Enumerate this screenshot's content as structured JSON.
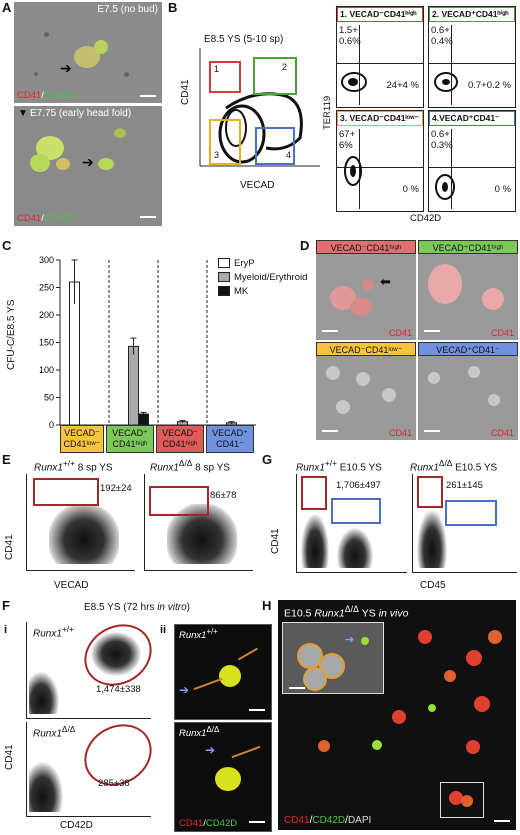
{
  "panels": {
    "A": {
      "label": "A",
      "top_caption": "E7.5 (no bud)",
      "bottom_caption": "E7.75 (early head fold)",
      "stain_red": "CD41",
      "stain_sep": "/",
      "stain_green": "CD42D"
    },
    "B": {
      "label": "B",
      "title": "E8.5 YS (5-10 sp)",
      "xlabel": "VECAD",
      "ylabel": "CD41",
      "gate_labels": [
        "1",
        "2",
        "3",
        "4"
      ],
      "subplots": [
        {
          "title": "1. VECAD⁻CD41ʰⁱᵍʰ",
          "ul": "1.5+\n0.6%",
          "lr": "24+4 %",
          "color": "#d23b3e"
        },
        {
          "title": "2. VECAD⁺CD41ʰⁱᵍʰ",
          "ul": "0.6+\n0.4%",
          "lr": "0.7+0.2 %",
          "color": "#4aa23a"
        },
        {
          "title": "3. VECAD⁻CD41ˡᵒʷ⁻",
          "ul": "67+\n6%",
          "lr": "0 %",
          "color": "#e8b020"
        },
        {
          "title": "4.VECAD⁺CD41⁻",
          "ul": "0.6+\n0.3%",
          "lr": "0 %",
          "color": "#4a70c8"
        }
      ],
      "sub_ylabel": "TER119",
      "sub_xlabel": "CD42D"
    },
    "C": {
      "label": "C",
      "ylabel": "CFU-C/E8.5 YS",
      "legend": [
        "EryP",
        "Myeloid/Erythroid",
        "MK"
      ],
      "categories": [
        {
          "line1": "VECAD⁻",
          "line2": "CD41ˡᵒʷ⁻",
          "color": "#f5c43a"
        },
        {
          "line1": "VECAD⁺",
          "line2": "CD41ʰⁱᵍʰ",
          "color": "#7cc85a"
        },
        {
          "line1": "VECAD⁻",
          "line2": "CD41ʰⁱᵍʰ",
          "color": "#e05a5a"
        },
        {
          "line1": "VECAD⁺",
          "line2": "CD41⁻",
          "color": "#7090e0"
        }
      ],
      "ytick_labels": [
        "0",
        "50",
        "100",
        "150",
        "200",
        "250",
        "300"
      ]
    },
    "D": {
      "label": "D",
      "tiles": [
        {
          "title": "VECAD⁻CD41ʰⁱᵍʰ",
          "stain": "CD41",
          "bg": "#e07070"
        },
        {
          "title": "VECAD⁺CD41ʰⁱᵍʰ",
          "stain": "CD41",
          "bg": "#7cc85a"
        },
        {
          "title": "VECAD⁻CD41ˡᵒʷ⁻",
          "stain": "CD41",
          "bg": "#f5c43a"
        },
        {
          "title": "VECAD⁺CD41⁻",
          "stain": "CD41",
          "bg": "#7090e0"
        }
      ]
    },
    "E": {
      "label": "E",
      "left_title_gene": "Runx1",
      "left_title_sup": "+/+",
      "left_title_rest": " 8 sp YS",
      "right_title_gene": "Runx1",
      "right_title_sup": "Δ/Δ",
      "right_title_rest": " 8 sp YS",
      "left_value": "192±24",
      "right_value": "86±78",
      "xlabel": "VECAD",
      "ylabel": "CD41"
    },
    "F": {
      "label": "F",
      "title": "E8.5 YS (72 hrs ",
      "title_ital": "in vitro",
      "title_end": ")",
      "i_label": "i",
      "ii_label": "ii",
      "top_gene": "Runx1",
      "top_sup": "+/+",
      "bottom_gene": "Runx1",
      "bottom_sup": "Δ/Δ",
      "top_value": "1,474±338",
      "bottom_value": "285±38",
      "xlabel": "CD42D",
      "ylabel": "CD41",
      "micro_top_gene": "Runx1",
      "micro_top_sup": "+/+",
      "micro_bottom_gene": "Runx1",
      "micro_bottom_sup": "Δ/Δ",
      "stain_red": "CD41",
      "stain_sep": "/",
      "stain_green": "CD42D"
    },
    "G": {
      "label": "G",
      "left_gene": "Runx1",
      "left_sup": "+/+",
      "left_rest": " E10.5 YS",
      "right_gene": "Runx1",
      "right_sup": "Δ/Δ",
      "right_rest": " E10.5 YS",
      "left_value": "1,706±497",
      "right_value": "261±145",
      "xlabel": "CD45",
      "ylabel": "CD41"
    },
    "H": {
      "label": "H",
      "title_pre": "E10.5 ",
      "title_gene": "Runx1",
      "title_sup": "Δ/Δ",
      "title_rest": " YS ",
      "title_ital": "in vivo",
      "stain_red": "CD41",
      "stain_sep1": "/",
      "stain_green": "CD42D",
      "stain_sep2": "/",
      "stain_white": "DAPI"
    }
  },
  "chart_data": {
    "type": "bar",
    "ylabel": "CFU-C/E8.5 YS",
    "ylim": [
      0,
      300
    ],
    "categories": [
      "VECAD⁻ CD41ˡᵒʷ⁻",
      "VECAD⁺ CD41ʰⁱᵍʰ",
      "VECAD⁻ CD41ʰⁱᵍʰ",
      "VECAD⁺ CD41⁻"
    ],
    "series": [
      {
        "name": "EryP",
        "values": [
          260,
          0,
          0,
          0
        ],
        "errors": [
          40,
          0,
          0,
          0
        ],
        "color": "#ffffff"
      },
      {
        "name": "Myeloid/Erythroid",
        "values": [
          0,
          143,
          6,
          4
        ],
        "errors": [
          0,
          15,
          2,
          2
        ],
        "color": "#aaaaaa"
      },
      {
        "name": "MK",
        "values": [
          0,
          20,
          0,
          0
        ],
        "errors": [
          0,
          3,
          0,
          0
        ],
        "color": "#111111"
      }
    ]
  }
}
